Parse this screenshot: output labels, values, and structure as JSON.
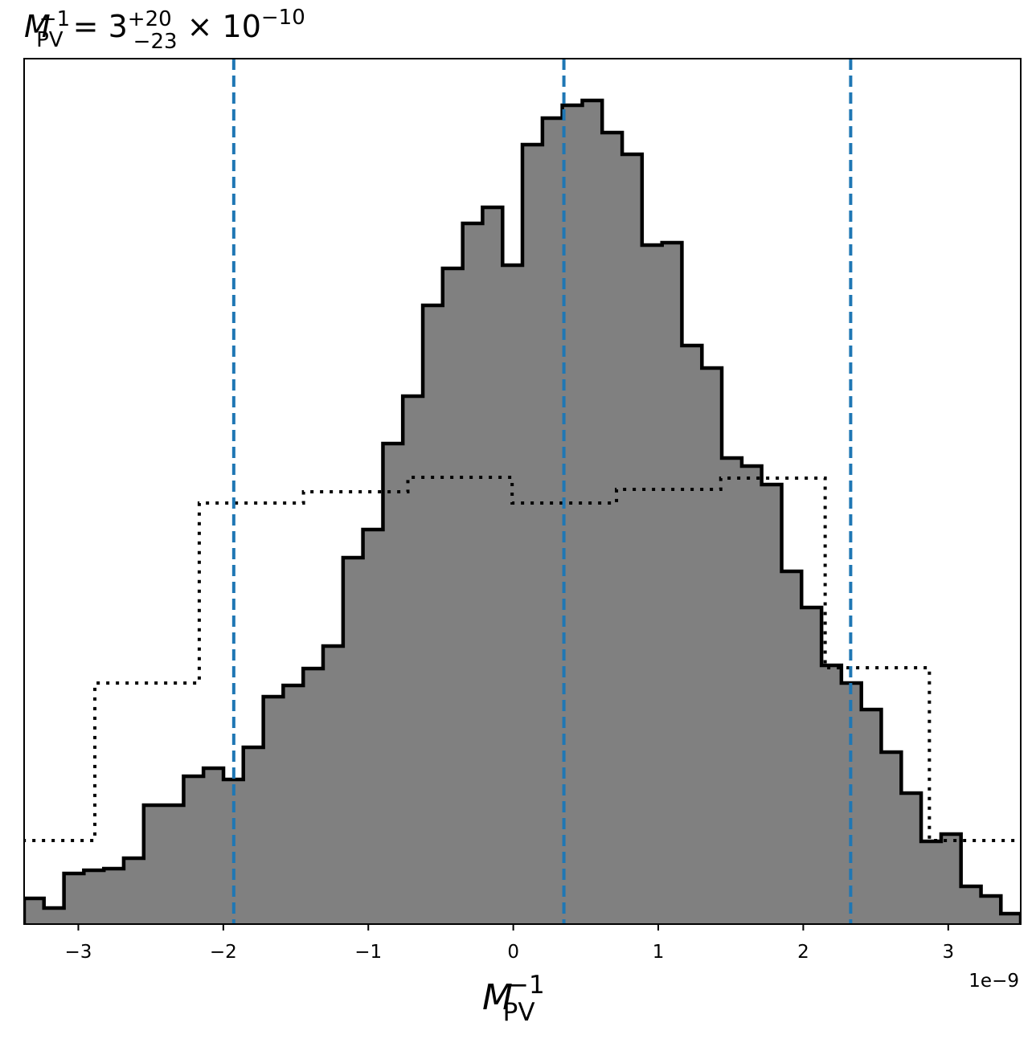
{
  "chart_data": {
    "type": "histogram",
    "title": {
      "symbol": "M",
      "sub": "PV",
      "sup": "−1",
      "eq": " = 3",
      "upper": "+20",
      "lower": "−23",
      "times": " × 10",
      "exp": "−10"
    },
    "xlabel": {
      "symbol": "M",
      "sub": "PV",
      "sup": "−1"
    },
    "x_offset_label": "1e−9",
    "xlim": [
      -3.374,
      3.5
    ],
    "ylim": [
      0,
      1077
    ],
    "xticks": [
      {
        "value": -3,
        "label": "−3"
      },
      {
        "value": -2,
        "label": "−2"
      },
      {
        "value": -1,
        "label": "−1"
      },
      0,
      1,
      2,
      3
    ],
    "series": [
      {
        "color": "#808080",
        "edgecolor": "#000000",
        "linestyle": "solid",
        "bins": [
          -3.374,
          -3.237,
          -3.099,
          -2.962,
          -2.824,
          -2.687,
          -2.549,
          -2.412,
          -2.274,
          -2.137,
          -1.999,
          -1.862,
          -1.724,
          -1.587,
          -1.449,
          -1.312,
          -1.174,
          -1.037,
          -0.899,
          -0.762,
          -0.624,
          -0.487,
          -0.349,
          -0.212,
          -0.074,
          0.063,
          0.201,
          0.338,
          0.476,
          0.613,
          0.751,
          0.888,
          1.026,
          1.163,
          1.301,
          1.438,
          1.576,
          1.713,
          1.851,
          1.988,
          2.126,
          2.263,
          2.401,
          2.538,
          2.676,
          2.813,
          2.951,
          3.088,
          3.226,
          3.363,
          3.5
        ],
        "values": [
          32,
          20,
          63,
          67,
          69,
          82,
          148,
          148,
          184,
          194,
          180,
          220,
          283,
          297,
          318,
          346,
          456,
          491,
          598,
          657,
          770,
          816,
          872,
          892,
          820,
          970,
          1003,
          1019,
          1025,
          985,
          958,
          845,
          848,
          720,
          692,
          580,
          570,
          547,
          439,
          394,
          322,
          300,
          267,
          214,
          163,
          103,
          112,
          47,
          35,
          13
        ]
      },
      {
        "color": "#000000",
        "linestyle": "dotted",
        "bins": [
          -3.606,
          -2.886,
          -2.166,
          -1.447,
          -0.727,
          -0.008,
          0.712,
          1.431,
          2.151,
          2.87,
          3.59
        ],
        "values": [
          104,
          300,
          524,
          538,
          556,
          524,
          541,
          555,
          319,
          104
        ]
      }
    ],
    "vlines": {
      "color": "#1f77b4",
      "linestyle": "dashed",
      "values": [
        -1.928,
        0.349,
        2.327
      ]
    }
  }
}
